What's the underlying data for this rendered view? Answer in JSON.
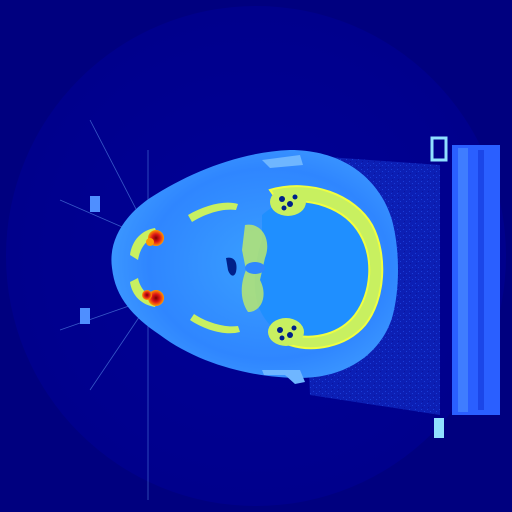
{
  "image": {
    "kind": "axial CT slice",
    "colormap": "jet",
    "colors": {
      "background": "#00007f",
      "air_dark": "#00009a",
      "soft_tissue": "#2f8dff",
      "soft_tissue_light": "#55b8ff",
      "brain": "#1f9fff",
      "bone": "#c8f060",
      "bone_core": "#f0ff40",
      "metal": "#d01010",
      "metal_halo": "#ff8a00",
      "table": "#2a6cff",
      "table_edge": "#9fe0ff"
    }
  }
}
